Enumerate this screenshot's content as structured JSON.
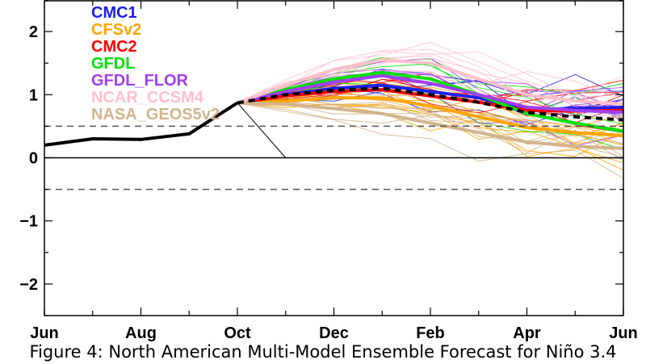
{
  "caption": "Figure 4: North American Multi-Model Ensemble Forecast for Niño 3.4",
  "chart_data": {
    "type": "line",
    "x_ticks": [
      "Jun",
      "Aug",
      "Oct",
      "Dec",
      "Feb",
      "Apr",
      "Jun"
    ],
    "x_minor_ticks": [
      "Jul",
      "Sep",
      "Nov",
      "Jan",
      "Mar",
      "May"
    ],
    "months": [
      "Jun",
      "Jul",
      "Aug",
      "Sep",
      "Oct",
      "Nov",
      "Dec",
      "Jan",
      "Feb",
      "Mar",
      "Apr",
      "May",
      "Jun"
    ],
    "ylim": [
      -2.5,
      2.5
    ],
    "y_ticks": [
      -2,
      -1,
      0,
      1,
      2
    ],
    "reference_lines": [
      {
        "y": 0.5,
        "style": "dashed"
      },
      {
        "y": -0.5,
        "style": "dashed"
      },
      {
        "y": 0,
        "style": "solid"
      }
    ],
    "legend_position": "top-left",
    "observed": {
      "x": [
        "Jun",
        "Jul",
        "Aug",
        "Sep",
        "Oct"
      ],
      "values": [
        0.2,
        0.3,
        0.29,
        0.38,
        0.87
      ],
      "color": "#000000"
    },
    "ensemble_mean": {
      "x": [
        "Oct",
        "Nov",
        "Dec",
        "Jan",
        "Feb",
        "Mar",
        "Apr",
        "May",
        "Jun"
      ],
      "values": [
        0.87,
        1.0,
        1.07,
        1.1,
        1.0,
        0.88,
        0.72,
        0.65,
        0.6
      ],
      "color": "#000000",
      "style": "dashed"
    },
    "decay_line": {
      "x0": "Oct",
      "y0": 0.87,
      "x1": "Nov",
      "y1": 0.0
    },
    "series": [
      {
        "name": "CMC1",
        "color": "#2020e8",
        "mean": [
          0.87,
          1.0,
          1.1,
          1.15,
          1.05,
          0.95,
          0.75,
          0.78,
          0.8
        ]
      },
      {
        "name": "CFSv2",
        "color": "#ffa500",
        "mean": [
          0.87,
          0.9,
          0.95,
          0.95,
          0.82,
          0.65,
          0.48,
          0.4,
          0.35
        ]
      },
      {
        "name": "CMC2",
        "color": "#ff0000",
        "mean": [
          0.87,
          0.98,
          1.05,
          1.08,
          0.98,
          0.88,
          0.75,
          0.74,
          0.75
        ]
      },
      {
        "name": "GFDL",
        "color": "#00e000",
        "mean": [
          0.87,
          1.08,
          1.25,
          1.35,
          1.25,
          1.0,
          0.7,
          0.55,
          0.42
        ]
      },
      {
        "name": "GFDL_FLOR",
        "color": "#a040f0",
        "mean": [
          0.87,
          1.05,
          1.2,
          1.3,
          1.18,
          1.0,
          0.8,
          0.75,
          0.72
        ]
      },
      {
        "name": "NCAR_CCSM4",
        "color": "#ffc0cb",
        "mean": [
          0.87,
          1.15,
          1.4,
          1.55,
          1.5,
          1.25,
          1.0,
          0.9,
          0.85
        ]
      },
      {
        "name": "NASA_GEOS5v2",
        "color": "#d2b48c",
        "mean": [
          0.87,
          0.85,
          0.78,
          0.7,
          0.55,
          0.4,
          0.25,
          0.18,
          0.15
        ]
      }
    ]
  }
}
